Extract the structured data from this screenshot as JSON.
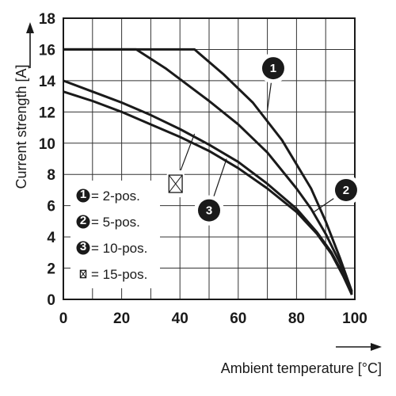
{
  "chart_data": {
    "type": "line",
    "xlabel": "Ambient temperature [°C]",
    "ylabel": "Current strength [A]",
    "xlim": [
      0,
      100
    ],
    "ylim": [
      0,
      18
    ],
    "x_ticks": [
      "0",
      "20",
      "40",
      "60",
      "80",
      "100"
    ],
    "y_ticks": [
      "0",
      "2",
      "4",
      "6",
      "8",
      "10",
      "12",
      "14",
      "16",
      "18"
    ],
    "grid": true,
    "series": [
      {
        "marker": "1",
        "points": [
          [
            0,
            16
          ],
          [
            45,
            16
          ],
          [
            55,
            14.4
          ],
          [
            65,
            12.6
          ],
          [
            75,
            10.2
          ],
          [
            85,
            7.1
          ],
          [
            90,
            5.0
          ],
          [
            95,
            2.6
          ],
          [
            99,
            0.5
          ]
        ]
      },
      {
        "marker": "2",
        "points": [
          [
            0,
            16
          ],
          [
            25,
            16
          ],
          [
            35,
            14.8
          ],
          [
            50,
            12.7
          ],
          [
            60,
            11.2
          ],
          [
            70,
            9.4
          ],
          [
            80,
            7.1
          ],
          [
            85,
            5.8
          ],
          [
            90,
            4.2
          ],
          [
            95,
            2.3
          ],
          [
            99,
            0.4
          ]
        ]
      },
      {
        "marker": "3",
        "points": [
          [
            0,
            14
          ],
          [
            10,
            13.3
          ],
          [
            20,
            12.6
          ],
          [
            30,
            11.8
          ],
          [
            40,
            10.9
          ],
          [
            50,
            9.9
          ],
          [
            60,
            8.8
          ],
          [
            70,
            7.4
          ],
          [
            80,
            5.8
          ],
          [
            87,
            4.3
          ],
          [
            92,
            3.0
          ],
          [
            96,
            1.6
          ],
          [
            99,
            0.3
          ]
        ]
      },
      {
        "marker": "⊠",
        "points": [
          [
            0,
            13.3
          ],
          [
            10,
            12.7
          ],
          [
            20,
            12.0
          ],
          [
            30,
            11.2
          ],
          [
            40,
            10.4
          ],
          [
            50,
            9.5
          ],
          [
            60,
            8.4
          ],
          [
            70,
            7.1
          ],
          [
            80,
            5.6
          ],
          [
            87,
            4.2
          ],
          [
            92,
            2.9
          ],
          [
            96,
            1.5
          ],
          [
            99,
            0.3
          ]
        ]
      }
    ],
    "legend": {
      "placement": "bottom-left",
      "entries": [
        {
          "marker": "1",
          "label": "= 2-pos."
        },
        {
          "marker": "2",
          "label": "= 5-pos."
        },
        {
          "marker": "3",
          "label": "= 10-pos."
        },
        {
          "marker": "⊠",
          "label": "= 15-pos."
        }
      ]
    },
    "callouts": [
      {
        "marker": "1",
        "at": [
          72,
          14.8
        ],
        "points_to": [
          70,
          12.1
        ]
      },
      {
        "marker": "2",
        "at": [
          97,
          7.0
        ],
        "points_to": [
          86,
          5.6
        ]
      },
      {
        "marker": "3",
        "at": [
          50,
          5.7
        ],
        "points_to": [
          56,
          9.0
        ]
      },
      {
        "marker": "⊠",
        "at": [
          38.5,
          7.4
        ],
        "points_to": [
          45,
          10.6
        ]
      }
    ]
  }
}
